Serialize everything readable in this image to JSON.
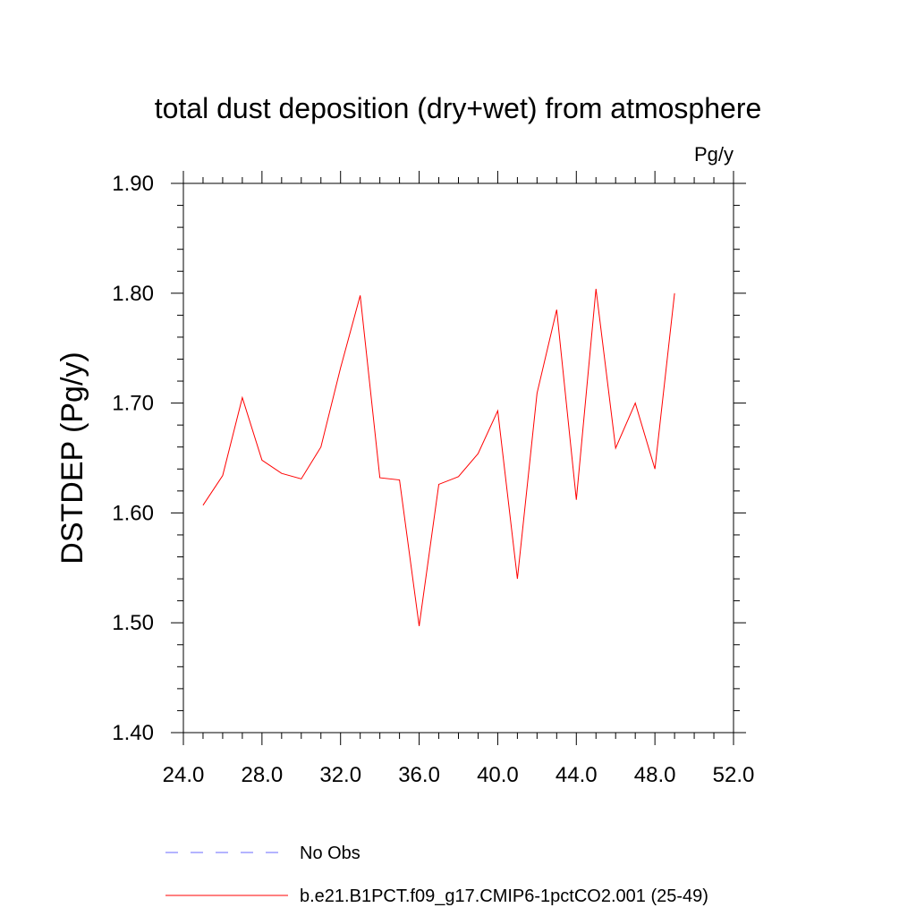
{
  "chart_data": {
    "type": "line",
    "title": "total dust deposition (dry+wet) from atmosphere",
    "units_label": "Pg/y",
    "ylabel": "DSTDEP  (Pg/y)",
    "xlabel": "",
    "xlim": [
      24,
      52
    ],
    "ylim": [
      1.4,
      1.9
    ],
    "x_ticks": [
      "24.0",
      "28.0",
      "32.0",
      "36.0",
      "40.0",
      "44.0",
      "48.0",
      "52.0"
    ],
    "y_ticks": [
      "1.40",
      "1.50",
      "1.60",
      "1.70",
      "1.80",
      "1.90"
    ],
    "grid": false,
    "legend_position": "bottom",
    "x": [
      25,
      26,
      27,
      28,
      29,
      30,
      31,
      32,
      33,
      34,
      35,
      36,
      37,
      38,
      39,
      40,
      41,
      42,
      43,
      44,
      45,
      46,
      47,
      48,
      49
    ],
    "series": [
      {
        "name": "b.e21.B1PCT.f09_g17.CMIP6-1pctCO2.001 (25-49)",
        "color": "#ff0000",
        "dash": "solid",
        "values": [
          1.607,
          1.634,
          1.705,
          1.648,
          1.636,
          1.631,
          1.66,
          1.732,
          1.798,
          1.632,
          1.63,
          1.497,
          1.626,
          1.633,
          1.654,
          1.693,
          1.54,
          1.709,
          1.785,
          1.612,
          1.804,
          1.659,
          1.7,
          1.64,
          1.8
        ]
      }
    ],
    "legend": [
      {
        "label": "No Obs",
        "color": "#6a6aff",
        "dash": "dashed"
      },
      {
        "label": "b.e21.B1PCT.f09_g17.CMIP6-1pctCO2.001 (25-49)",
        "color": "#ff0000",
        "dash": "solid"
      }
    ]
  }
}
